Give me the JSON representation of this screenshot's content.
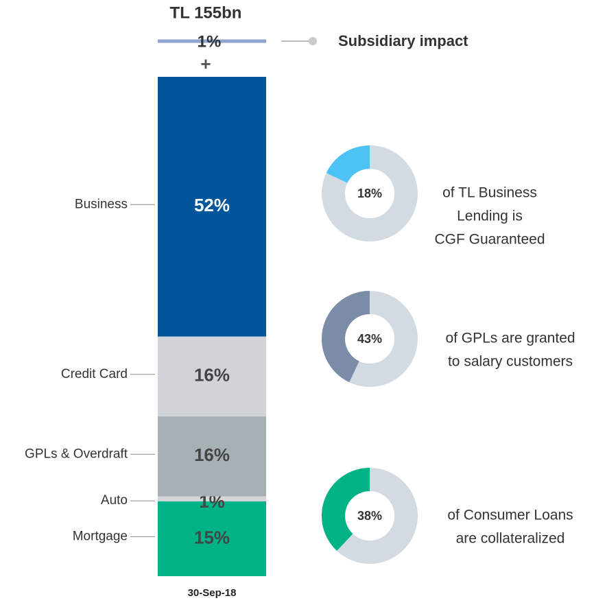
{
  "chart_data": {
    "type": "stacked_bar",
    "title": "TL 155bn",
    "categories": [
      "30-Sep-18"
    ],
    "ylim": [
      0,
      100
    ],
    "series": [
      {
        "name": "Mortgage",
        "color": "#00b386",
        "values": [
          15
        ],
        "value_labels": [
          "15%"
        ]
      },
      {
        "name": "Auto",
        "color": "#d3d6d9",
        "values": [
          1
        ],
        "value_labels": [
          "1%"
        ]
      },
      {
        "name": "GPLs & Overdraft",
        "color": "#a7b1b5",
        "values": [
          16
        ],
        "value_labels": [
          "16%"
        ]
      },
      {
        "name": "Credit Card",
        "color": "#d0d4d8",
        "values": [
          16
        ],
        "value_labels": [
          "16%"
        ]
      },
      {
        "name": "Business",
        "color": "#00559b",
        "values": [
          52
        ],
        "value_labels": [
          "52%"
        ]
      }
    ],
    "subsidiary": {
      "name": "Subsidiary impact",
      "color": "#8fa5cf",
      "values": [
        1
      ],
      "value_labels": [
        "1%"
      ],
      "sign": "+"
    }
  },
  "donut_charts": [
    {
      "type": "donut",
      "value": 18,
      "value_label": "18%",
      "color": "#4dc3f5",
      "text": [
        "of TL Business",
        "Lending is",
        "CGF Guaranteed"
      ]
    },
    {
      "type": "donut",
      "value": 43,
      "value_label": "43%",
      "color": "#7a8ca6",
      "text": [
        "of GPLs are granted",
        "to salary customers"
      ]
    },
    {
      "type": "donut",
      "value": 38,
      "value_label": "38%",
      "color": "#00b386",
      "text": [
        "of Consumer Loans",
        "are collateralized"
      ]
    }
  ]
}
